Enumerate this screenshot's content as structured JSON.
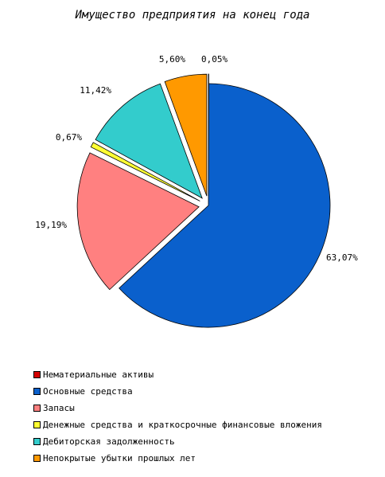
{
  "chart_data": {
    "type": "pie",
    "title": "Имущество предприятия на конец года",
    "slices": [
      {
        "name": "Нематериальные активы",
        "value": 0.05,
        "label": "0,05%",
        "color": "#d40000"
      },
      {
        "name": "Основные средства",
        "value": 63.07,
        "label": "63,07%",
        "color": "#0a60cc"
      },
      {
        "name": "Запасы",
        "value": 19.19,
        "label": "19,19%",
        "color": "#ff8080"
      },
      {
        "name": "Денежные средства и краткосрочные финансовые вложения",
        "value": 0.67,
        "label": "0,67%",
        "color": "#ffff33"
      },
      {
        "name": "Дебиторская задолженность",
        "value": 11.42,
        "label": "11,42%",
        "color": "#33cccc"
      },
      {
        "name": "Непокрытые убытки прошлых лет",
        "value": 5.6,
        "label": "5,60%",
        "color": "#ff9900"
      }
    ],
    "legend_position": "bottom"
  }
}
